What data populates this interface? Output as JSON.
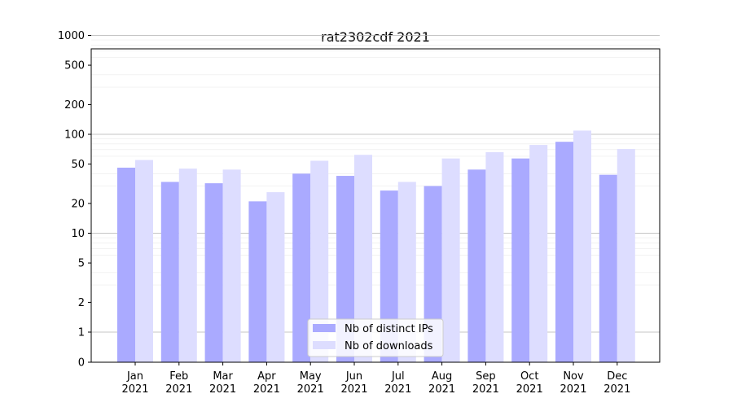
{
  "chart_data": {
    "type": "bar",
    "title": "rat2302cdf 2021",
    "xlabel": "",
    "ylabel": "",
    "y_scale": "symlog",
    "ylim": [
      0,
      1200
    ],
    "y_ticks": [
      0,
      1,
      2,
      5,
      10,
      20,
      50,
      100,
      200,
      500,
      1000
    ],
    "categories": [
      [
        "Jan",
        "2021"
      ],
      [
        "Feb",
        "2021"
      ],
      [
        "Mar",
        "2021"
      ],
      [
        "Apr",
        "2021"
      ],
      [
        "May",
        "2021"
      ],
      [
        "Jun",
        "2021"
      ],
      [
        "Jul",
        "2021"
      ],
      [
        "Aug",
        "2021"
      ],
      [
        "Sep",
        "2021"
      ],
      [
        "Oct",
        "2021"
      ],
      [
        "Nov",
        "2021"
      ],
      [
        "Dec",
        "2021"
      ]
    ],
    "series": [
      {
        "name": "Nb of distinct IPs",
        "color": "#aaaaff",
        "values": [
          46,
          33,
          32,
          21,
          40,
          38,
          27,
          30,
          44,
          57,
          84,
          39
        ]
      },
      {
        "name": "Nb of downloads",
        "color": "#ddddff",
        "values": [
          55,
          45,
          44,
          26,
          54,
          62,
          33,
          57,
          66,
          78,
          109,
          71
        ]
      }
    ],
    "legend": "bottom-center",
    "grid": true
  }
}
